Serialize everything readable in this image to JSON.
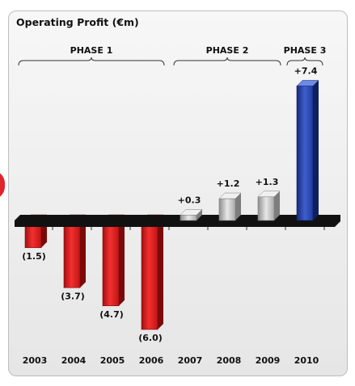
{
  "chart_data": {
    "type": "bar",
    "title": "Operating Profit (€m)",
    "categories": [
      "2003",
      "2004",
      "2005",
      "2006",
      "2007",
      "2008",
      "2009",
      "2010"
    ],
    "values": [
      -1.5,
      -3.7,
      -4.7,
      -6.0,
      0.3,
      1.2,
      1.3,
      7.4
    ],
    "data_labels": [
      "(1.5)",
      "(3.7)",
      "(4.7)",
      "(6.0)",
      "+0.3",
      "+1.2",
      "+1.3",
      "+7.4"
    ],
    "phases": [
      {
        "label": "PHASE 1",
        "categories": [
          "2003",
          "2004",
          "2005",
          "2006"
        ]
      },
      {
        "label": "PHASE 2",
        "categories": [
          "2007",
          "2008",
          "2009"
        ]
      },
      {
        "label": "PHASE 3",
        "categories": [
          "2010"
        ]
      }
    ],
    "colors": {
      "negative": "#e41f1f",
      "phase2": "#c4c4c4",
      "phase3": "#2f4bb6",
      "baseline": "#111111"
    },
    "grid": false
  }
}
